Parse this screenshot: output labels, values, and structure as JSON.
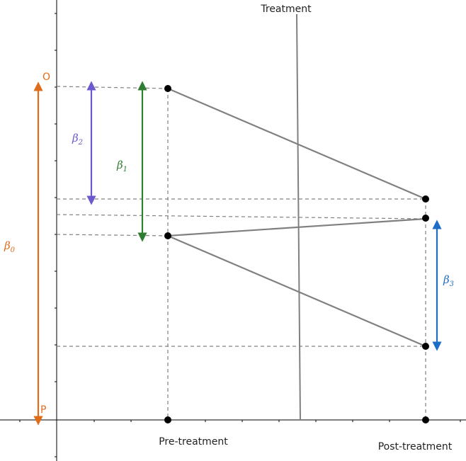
{
  "labels": {
    "treatment": "Treatment",
    "pre_treatment": "Pre-treatment",
    "post_treatment": "Post-treatment",
    "point_o": "O",
    "point_p": "P"
  },
  "betas": {
    "b0": {
      "symbol": "β",
      "subscript": "0",
      "color": "#e06c1a"
    },
    "b1": {
      "symbol": "β",
      "subscript": "1",
      "color": "#2e7d32"
    },
    "b2": {
      "symbol": "β",
      "subscript": "2",
      "color": "#6a5acd"
    },
    "b3": {
      "symbol": "β",
      "subscript": "3",
      "color": "#1e6ec8"
    }
  },
  "colors": {
    "axis": "#000000",
    "line": "#808080",
    "dashed": "#808080",
    "point": "#000000"
  }
}
